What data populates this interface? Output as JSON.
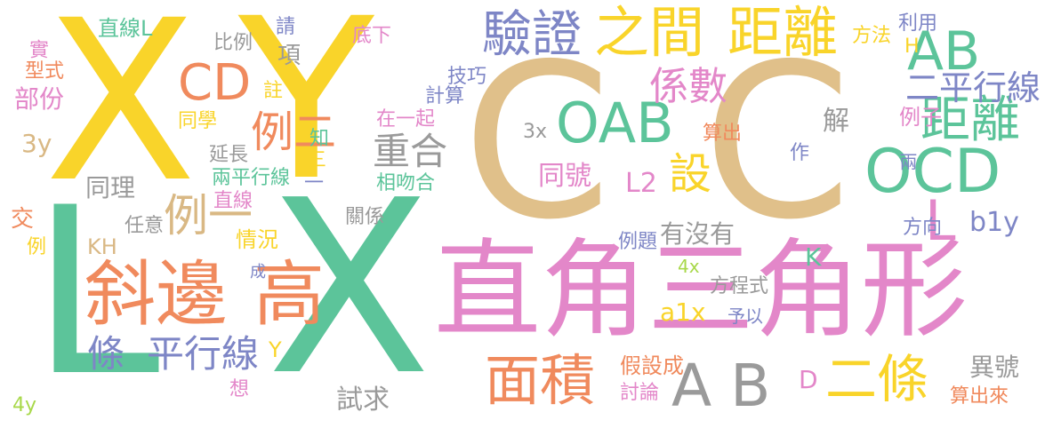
{
  "palette": {
    "yellow": "#f9d42a",
    "tan": "#e0c08a",
    "green": "#5cc49a",
    "pink": "#e387c9",
    "orange": "#f08a5d",
    "blue": "#7e86c6",
    "gray": "#9a9a9a",
    "lime": "#a8d84a",
    "sand": "#d9b884"
  },
  "words": [
    {
      "t": "X",
      "c": "yellow"
    },
    {
      "t": "Y",
      "c": "yellow"
    },
    {
      "t": "C",
      "c": "tan"
    },
    {
      "t": "C",
      "c": "tan"
    },
    {
      "t": "L",
      "c": "green"
    },
    {
      "t": "X",
      "c": "green"
    },
    {
      "t": "直角三角形",
      "c": "pink"
    },
    {
      "t": "斜邊",
      "c": "orange"
    },
    {
      "t": "高",
      "c": "orange"
    },
    {
      "t": "驗證",
      "c": "blue"
    },
    {
      "t": "之間",
      "c": "yellow"
    },
    {
      "t": "距離",
      "c": "yellow"
    },
    {
      "t": "AB",
      "c": "green"
    },
    {
      "t": "OAB",
      "c": "green"
    },
    {
      "t": "OCD",
      "c": "green"
    },
    {
      "t": "距離",
      "c": "green"
    },
    {
      "t": "CD",
      "c": "orange"
    },
    {
      "t": "例二",
      "c": "orange"
    },
    {
      "t": "例一",
      "c": "sand"
    },
    {
      "t": "重合",
      "c": "gray"
    },
    {
      "t": "設",
      "c": "yellow"
    },
    {
      "t": "係數",
      "c": "pink"
    },
    {
      "t": "二平行線",
      "c": "blue"
    },
    {
      "t": "面積",
      "c": "orange"
    },
    {
      "t": "A B",
      "c": "gray"
    },
    {
      "t": "二條",
      "c": "yellow"
    },
    {
      "t": "條",
      "c": "blue"
    },
    {
      "t": "平行線",
      "c": "blue"
    },
    {
      "t": "L",
      "c": "pink"
    },
    {
      "t": "L2",
      "c": "pink"
    },
    {
      "t": "同號",
      "c": "pink"
    },
    {
      "t": "解",
      "c": "gray"
    },
    {
      "t": "例子",
      "c": "pink"
    },
    {
      "t": "算出",
      "c": "orange"
    },
    {
      "t": "3x",
      "c": "gray"
    },
    {
      "t": "有沒有",
      "c": "gray"
    },
    {
      "t": "例題",
      "c": "blue"
    },
    {
      "t": "b1y",
      "c": "blue"
    },
    {
      "t": "方向",
      "c": "blue"
    },
    {
      "t": "K",
      "c": "green"
    },
    {
      "t": "4x",
      "c": "lime"
    },
    {
      "t": "a1x",
      "c": "yellow"
    },
    {
      "t": "方程式",
      "c": "gray"
    },
    {
      "t": "予以",
      "c": "blue"
    },
    {
      "t": "假設成",
      "c": "orange"
    },
    {
      "t": "討論",
      "c": "pink"
    },
    {
      "t": "D",
      "c": "pink"
    },
    {
      "t": "異號",
      "c": "gray"
    },
    {
      "t": "算出來",
      "c": "orange"
    },
    {
      "t": "試求",
      "c": "gray"
    },
    {
      "t": "想",
      "c": "pink"
    },
    {
      "t": "成",
      "c": "blue"
    },
    {
      "t": "Y",
      "c": "yellow"
    },
    {
      "t": "4y",
      "c": "lime"
    },
    {
      "t": "直線L",
      "c": "green"
    },
    {
      "t": "比例",
      "c": "gray"
    },
    {
      "t": "請",
      "c": "blue"
    },
    {
      "t": "底下",
      "c": "pink"
    },
    {
      "t": "項",
      "c": "gray"
    },
    {
      "t": "註",
      "c": "yellow"
    },
    {
      "t": "技巧",
      "c": "blue"
    },
    {
      "t": "計算",
      "c": "blue"
    },
    {
      "t": "在一起",
      "c": "pink"
    },
    {
      "t": "實",
      "c": "pink"
    },
    {
      "t": "型式",
      "c": "orange"
    },
    {
      "t": "部份",
      "c": "pink"
    },
    {
      "t": "同學",
      "c": "yellow"
    },
    {
      "t": "3y",
      "c": "sand"
    },
    {
      "t": "延長",
      "c": "gray"
    },
    {
      "t": "知",
      "c": "green"
    },
    {
      "t": "三",
      "c": "yellow"
    },
    {
      "t": "兩平行線",
      "c": "green"
    },
    {
      "t": "一",
      "c": "blue"
    },
    {
      "t": "相吻合",
      "c": "green"
    },
    {
      "t": "同理",
      "c": "gray"
    },
    {
      "t": "直線",
      "c": "pink"
    },
    {
      "t": "任意",
      "c": "gray"
    },
    {
      "t": "交",
      "c": "orange"
    },
    {
      "t": "例",
      "c": "yellow"
    },
    {
      "t": "KH",
      "c": "sand"
    },
    {
      "t": "情況",
      "c": "yellow"
    },
    {
      "t": "關係",
      "c": "gray"
    },
    {
      "t": "方法",
      "c": "yellow"
    },
    {
      "t": "利用",
      "c": "blue"
    },
    {
      "t": "H",
      "c": "yellow"
    },
    {
      "t": "作",
      "c": "blue"
    },
    {
      "t": "兩",
      "c": "blue"
    }
  ]
}
